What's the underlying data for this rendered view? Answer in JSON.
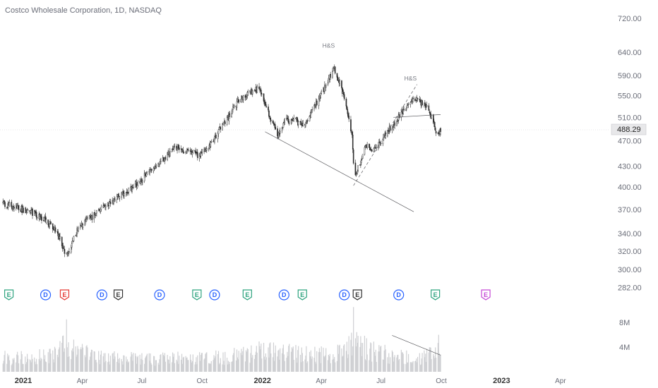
{
  "chart_data": {
    "type": "candlestick",
    "title": "Costco Wholesale Corporation, 1D, NASDAQ",
    "last_price": 488.29,
    "y_scale": "log",
    "ylim": [
      272,
      738
    ],
    "y_ticks": [
      720,
      640,
      590,
      550,
      510,
      470,
      430,
      400,
      370,
      340,
      320,
      300,
      282
    ],
    "y_tick_labels": [
      "720.00",
      "640.00",
      "590.00",
      "550.00",
      "510.00",
      "470.00",
      "430.00",
      "400.00",
      "370.00",
      "340.00",
      "320.00",
      "300.00",
      "282.00"
    ],
    "x_ticks": [
      {
        "label": "2021",
        "bold": true,
        "date": "2021-01-01"
      },
      {
        "label": "Apr",
        "bold": false,
        "date": "2021-04-01"
      },
      {
        "label": "Jul",
        "bold": false,
        "date": "2021-07-01"
      },
      {
        "label": "Oct",
        "bold": false,
        "date": "2021-10-01"
      },
      {
        "label": "2022",
        "bold": true,
        "date": "2022-01-01"
      },
      {
        "label": "Apr",
        "bold": false,
        "date": "2022-04-01"
      },
      {
        "label": "Jul",
        "bold": false,
        "date": "2022-07-01"
      },
      {
        "label": "Oct",
        "bold": false,
        "date": "2022-10-01"
      },
      {
        "label": "2023",
        "bold": true,
        "date": "2023-01-01"
      },
      {
        "label": "Apr",
        "bold": false,
        "date": "2023-04-01"
      }
    ],
    "price_path": [
      [
        "2020-12-01",
        378
      ],
      [
        "2020-12-20",
        372
      ],
      [
        "2021-01-10",
        368
      ],
      [
        "2021-02-01",
        358
      ],
      [
        "2021-02-20",
        345
      ],
      [
        "2021-03-08",
        315
      ],
      [
        "2021-03-25",
        345
      ],
      [
        "2021-04-15",
        360
      ],
      [
        "2021-05-01",
        372
      ],
      [
        "2021-05-20",
        382
      ],
      [
        "2021-06-10",
        395
      ],
      [
        "2021-06-25",
        405
      ],
      [
        "2021-07-10",
        420
      ],
      [
        "2021-07-25",
        430
      ],
      [
        "2021-08-10",
        448
      ],
      [
        "2021-08-25",
        460
      ],
      [
        "2021-09-10",
        452
      ],
      [
        "2021-09-25",
        447
      ],
      [
        "2021-10-10",
        455
      ],
      [
        "2021-10-25",
        485
      ],
      [
        "2021-11-10",
        510
      ],
      [
        "2021-11-25",
        540
      ],
      [
        "2021-12-10",
        555
      ],
      [
        "2021-12-28",
        565
      ],
      [
        "2022-01-05",
        535
      ],
      [
        "2022-01-15",
        505
      ],
      [
        "2022-01-25",
        480
      ],
      [
        "2022-02-05",
        505
      ],
      [
        "2022-02-20",
        505
      ],
      [
        "2022-03-05",
        495
      ],
      [
        "2022-03-15",
        515
      ],
      [
        "2022-03-28",
        545
      ],
      [
        "2022-04-10",
        575
      ],
      [
        "2022-04-20",
        605
      ],
      [
        "2022-04-30",
        575
      ],
      [
        "2022-05-10",
        520
      ],
      [
        "2022-05-18",
        480
      ],
      [
        "2022-05-21",
        415
      ],
      [
        "2022-05-28",
        430
      ],
      [
        "2022-06-08",
        460
      ],
      [
        "2022-06-18",
        455
      ],
      [
        "2022-06-28",
        465
      ],
      [
        "2022-07-10",
        485
      ],
      [
        "2022-07-22",
        500
      ],
      [
        "2022-08-05",
        525
      ],
      [
        "2022-08-15",
        540
      ],
      [
        "2022-08-22",
        545
      ],
      [
        "2022-09-01",
        535
      ],
      [
        "2022-09-10",
        528
      ],
      [
        "2022-09-18",
        505
      ],
      [
        "2022-09-25",
        475
      ],
      [
        "2022-09-30",
        488
      ]
    ],
    "volume_path": [
      [
        "2020-12-01",
        2.3
      ],
      [
        "2021-02-15",
        2.5
      ],
      [
        "2021-03-08",
        4.5
      ],
      [
        "2021-03-20",
        3.4
      ],
      [
        "2021-05-01",
        2.4
      ],
      [
        "2021-07-01",
        2.2
      ],
      [
        "2021-09-01",
        2.2
      ],
      [
        "2021-11-01",
        2.4
      ],
      [
        "2021-12-15",
        3.2
      ],
      [
        "2022-01-10",
        3.4
      ],
      [
        "2022-03-01",
        2.8
      ],
      [
        "2022-04-15",
        2.9
      ],
      [
        "2022-05-20",
        5.0
      ],
      [
        "2022-06-15",
        3.4
      ],
      [
        "2022-08-01",
        2.4
      ],
      [
        "2022-09-01",
        2.3
      ],
      [
        "2022-09-25",
        3.4
      ],
      [
        "2022-09-30",
        2.4
      ]
    ],
    "volume_ticks": [
      {
        "value": 8,
        "label": "8M"
      },
      {
        "value": 4,
        "label": "4M"
      }
    ],
    "volume_max": 9.5,
    "volume_spikes": [
      [
        "2021-03-08",
        8.5
      ],
      [
        "2022-05-20",
        10.5
      ],
      [
        "2022-09-27",
        6.0
      ]
    ],
    "events": [
      {
        "type": "E",
        "date": "2020-12-10",
        "color": "#2ea37f"
      },
      {
        "type": "D",
        "date": "2021-02-04",
        "color": "#2962ff"
      },
      {
        "type": "E",
        "date": "2021-03-05",
        "color": "#e53935"
      },
      {
        "type": "D",
        "date": "2021-05-01",
        "color": "#2962ff"
      },
      {
        "type": "E",
        "date": "2021-05-26",
        "color": "#333333"
      },
      {
        "type": "D",
        "date": "2021-07-28",
        "color": "#2962ff"
      },
      {
        "type": "E",
        "date": "2021-09-23",
        "color": "#2ea37f"
      },
      {
        "type": "D",
        "date": "2021-10-20",
        "color": "#2962ff"
      },
      {
        "type": "E",
        "date": "2021-12-09",
        "color": "#2ea37f"
      },
      {
        "type": "D",
        "date": "2022-02-03",
        "color": "#2962ff"
      },
      {
        "type": "E",
        "date": "2022-03-03",
        "color": "#2ea37f"
      },
      {
        "type": "D",
        "date": "2022-05-06",
        "color": "#2962ff"
      },
      {
        "type": "E",
        "date": "2022-05-26",
        "color": "#333333"
      },
      {
        "type": "D",
        "date": "2022-07-28",
        "color": "#2962ff"
      },
      {
        "type": "E",
        "date": "2022-09-22",
        "color": "#2ea37f"
      },
      {
        "type": "E",
        "date": "2022-12-08",
        "color": "#c547d6"
      }
    ],
    "annotations": [
      {
        "text": "H&S",
        "date": "2022-04-12",
        "price": 650
      },
      {
        "text": "H&S",
        "date": "2022-08-15",
        "price": 580
      }
    ],
    "trendlines": [
      {
        "from": [
          "2022-01-05",
          485
        ],
        "to": [
          "2022-08-20",
          367
        ],
        "dashed": false
      },
      {
        "from": [
          "2022-05-20",
          402
        ],
        "to": [
          "2022-08-25",
          572
        ],
        "dashed": true
      },
      {
        "from": [
          "2022-07-20",
          510
        ],
        "to": [
          "2022-09-30",
          515
        ],
        "dashed": false
      },
      {
        "from": [
          "2022-07-18",
          5.9
        ],
        "to": [
          "2022-09-30",
          2.7
        ],
        "dashed": false,
        "pane": "volume"
      }
    ]
  }
}
